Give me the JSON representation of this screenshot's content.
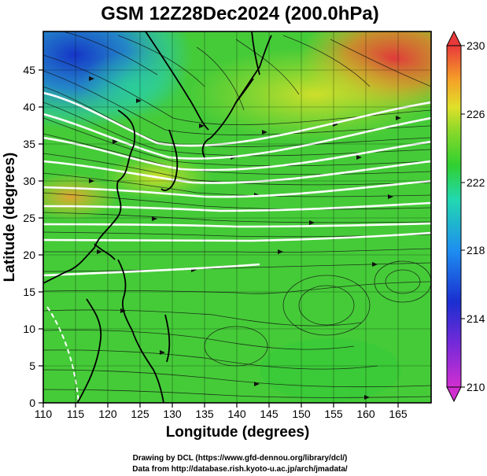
{
  "title": "GSM 12Z28Dec2024 (200.0hPa)",
  "map": {
    "x_label": "Longitude (degrees)",
    "y_label": "Latitude  (degrees)",
    "x_ticks": [
      "110",
      "115",
      "120",
      "125",
      "130",
      "135",
      "140",
      "145",
      "150",
      "155",
      "160",
      "165"
    ],
    "y_ticks": [
      "0",
      "5",
      "10",
      "15",
      "20",
      "25",
      "30",
      "35",
      "40",
      "45"
    ],
    "lon_range": [
      110,
      170
    ],
    "lat_range": [
      0,
      50
    ]
  },
  "colorbar": {
    "ticks": [
      "210",
      "214",
      "218",
      "222",
      "226",
      "230"
    ],
    "range": [
      210,
      230
    ]
  },
  "credits": {
    "line1": "Drawing by DCL (https://www.gfd-dennou.org/library/dcl/)",
    "line2": "Data from http://database.rish.kyoto-u.ac.jp/arch/jmadata/"
  }
}
